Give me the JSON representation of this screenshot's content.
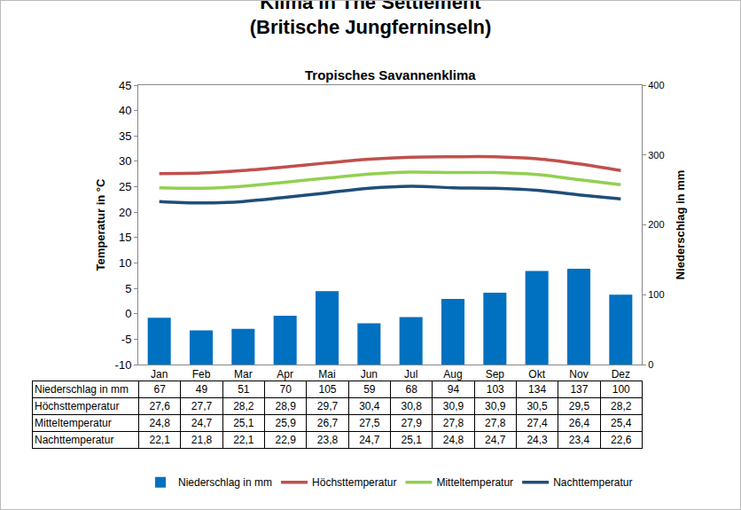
{
  "chart_data": {
    "type": "bar",
    "title": "Klima in The Settlement\n(Britische Jungferninseln)",
    "subtitle": "Tropisches Savannenklima",
    "y_label": "Temperatur in °C",
    "y2_label": "Niederschlag in mm",
    "categories": [
      "Jan",
      "Feb",
      "Mar",
      "Apr",
      "Mai",
      "Jun",
      "Jul",
      "Aug",
      "Sep",
      "Okt",
      "Nov",
      "Dez"
    ],
    "series": [
      {
        "name": "Niederschlag in mm",
        "type": "bar",
        "axis": "y2",
        "color": "#0070c0",
        "values": [
          67,
          49,
          51,
          70,
          105,
          59,
          68,
          94,
          103,
          134,
          137,
          100
        ]
      },
      {
        "name": "Höchsttemperatur",
        "type": "line",
        "color": "#c0504d",
        "line_style": "solid",
        "values": [
          27.6,
          27.7,
          28.2,
          28.9,
          29.7,
          30.4,
          30.8,
          30.9,
          30.9,
          30.5,
          29.5,
          28.2
        ],
        "value_labels": [
          "27,6",
          "27,7",
          "28,2",
          "28,9",
          "29,7",
          "30,4",
          "30,8",
          "30,9",
          "30,9",
          "30,5",
          "29,5",
          "28,2"
        ]
      },
      {
        "name": "Mitteltemperatur",
        "type": "line",
        "color": "#92d050",
        "line_style": "solid",
        "values": [
          24.8,
          24.7,
          25.1,
          25.9,
          26.7,
          27.5,
          27.9,
          27.8,
          27.8,
          27.4,
          26.4,
          25.4
        ],
        "value_labels": [
          "24,8",
          "24,7",
          "25,1",
          "25,9",
          "26,7",
          "27,5",
          "27,9",
          "27,8",
          "27,8",
          "27,4",
          "26,4",
          "25,4"
        ]
      },
      {
        "name": "Nachttemperatur",
        "type": "line",
        "color": "#1f4e79",
        "line_style": "solid",
        "values": [
          22.1,
          21.8,
          22.1,
          22.9,
          23.8,
          24.7,
          25.1,
          24.8,
          24.7,
          24.3,
          23.4,
          22.6
        ],
        "value_labels": [
          "22,1",
          "21,8",
          "22,1",
          "22,9",
          "23,8",
          "24,7",
          "25,1",
          "24,8",
          "24,7",
          "24,3",
          "23,4",
          "22,6"
        ]
      }
    ],
    "ylim": [
      -10,
      45
    ],
    "yticks": [
      -10,
      -5,
      0,
      5,
      10,
      15,
      20,
      25,
      30,
      35,
      40,
      45
    ],
    "y2lim": [
      0,
      400
    ],
    "y2ticks": [
      0,
      100,
      200,
      300,
      400
    ],
    "grid": false,
    "legend": "bottom"
  }
}
